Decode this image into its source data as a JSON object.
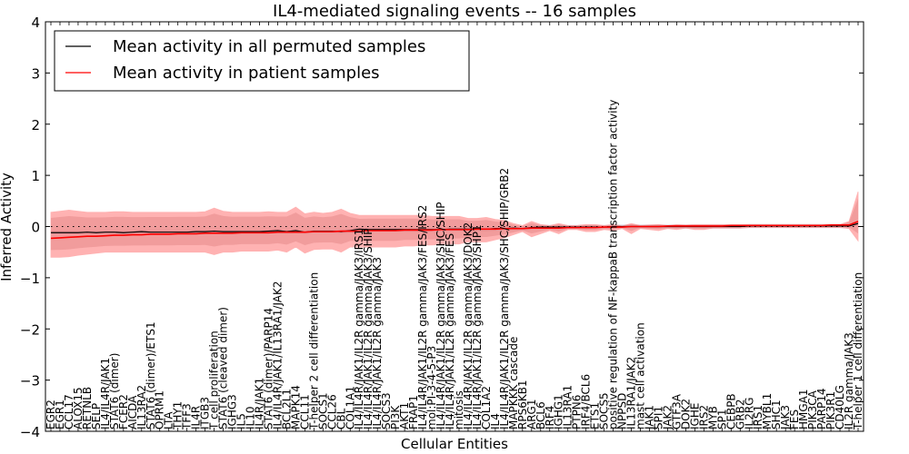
{
  "chart_data": {
    "type": "line",
    "title": "IL4-mediated signaling events -- 16 samples",
    "xlabel": "Cellular Entities",
    "ylabel": "Inferred Activity",
    "ylim": [
      -4,
      4
    ],
    "yticks": [
      -4,
      -3,
      -2,
      -1,
      0,
      1,
      2,
      3,
      4
    ],
    "ytick_labels": [
      "−4",
      "−3",
      "−2",
      "−1",
      "0",
      "1",
      "2",
      "3",
      "4"
    ],
    "grid": false,
    "zero_reference_line": "dotted",
    "legend": {
      "placement": "top-left",
      "entries": [
        {
          "label": "Mean activity in all permuted samples",
          "color": "#000000"
        },
        {
          "label": "Mean activity in patient samples",
          "color": "#ff0000"
        }
      ]
    },
    "colors": {
      "permuted_line": "#000000",
      "patient_line": "#ff0000",
      "patient_band": "#ff8080",
      "patient_band_inner": "#e08080",
      "permuted_band": "#c8c8d8"
    },
    "categories": [
      "EGR2",
      "EGR1",
      "CCL17",
      "ALOX15",
      "RETNLB",
      "SELP",
      "IL4/IL4R/JAK1",
      "STAT6 (dimer)",
      "FCER2",
      "AICDA",
      "IL13RA2",
      "STAT6 (dimer)/ETS1",
      "OPRM1",
      "LTA",
      "THY1",
      "TFF3",
      "IL4R",
      "ITGB3",
      "T cell proliferation",
      "STAT6 (cleaved dimer)",
      "IGHG3",
      "IL5",
      "IL10",
      "IL4R/JAK1",
      "STAT6 (dimer)/PARP14",
      "IL4/IL4R/JAK1/IL13RA1/JAK2",
      "BCL2L1",
      "MAPK14",
      "CCL11",
      "T-helper 2 cell differentiation",
      "SOCS1",
      "CCL26",
      "CBL",
      "COL1A1",
      "IL4/IL4R/JAK1/IL2R gamma/JAK3/IRS1",
      "IL4/IL4R/JAK1/IL2R gamma/JAK3/SHIP",
      "IL4/IL4R/JAK1/IL2R gamma/JAK3",
      "SOCS3",
      "PI3K",
      "AKT1",
      "FRAP1",
      "IL4/IL4R/JAK1/IL2R gamma/JAK3/FES/IRS2",
      "mol:PI-3-4-5-P3",
      "IL4/IL4R/JAK1/IL2R gamma/JAK3/SHC/SHIP",
      "IL4/IL4R/JAK1/IL2R gamma/JAK3/FES",
      "mitosis",
      "IL4/IL4R/JAK1/IL2R gamma/JAK3/DOK2",
      "IL4/IL4R/JAK1/IL2R gamma/JAK3/SHP1",
      "COL1A2",
      "IL4",
      "IL4/IL4R/JAK1/IL2R gamma/JAK3/SHC/SHIP/GRB2",
      "MAPKKK cascade",
      "RPS6KB1",
      "ARG1",
      "BCL6",
      "IRF4",
      "IGHG1",
      "IL13RA1",
      "PTPN6",
      "IRF4/BCL6",
      "ETS1",
      "SOCS5",
      "positive regulation of NF-kappaB transcription factor activity",
      "NPPSD",
      "IL13RA1/JAK2",
      "mast cell activation",
      "JAK1",
      "SPI1",
      "JAK2",
      "GTF3A",
      "DOK2",
      "IGHE",
      "IRS2",
      "MYB",
      "SP1",
      "CEBPB",
      "GRB2",
      "IL2RG",
      "IRS1",
      "MYBL1",
      "SHC1",
      "JAK3",
      "FES",
      "HMGA1",
      "PIK3CA",
      "PARP14",
      "PIK3R1",
      "CD40LG",
      "IL2R gamma/JAK3",
      "T-helper 1 cell differentiation"
    ],
    "series": [
      {
        "name": "Mean activity in all permuted samples",
        "values": [
          -0.12,
          -0.12,
          -0.12,
          -0.12,
          -0.11,
          -0.12,
          -0.11,
          -0.11,
          -0.12,
          -0.11,
          -0.1,
          -0.11,
          -0.11,
          -0.11,
          -0.11,
          -0.11,
          -0.1,
          -0.1,
          -0.09,
          -0.1,
          -0.1,
          -0.1,
          -0.1,
          -0.1,
          -0.09,
          -0.08,
          -0.1,
          -0.08,
          -0.11,
          -0.09,
          -0.09,
          -0.09,
          -0.1,
          -0.08,
          -0.05,
          -0.06,
          -0.06,
          -0.06,
          -0.06,
          -0.06,
          -0.06,
          -0.06,
          -0.06,
          -0.06,
          -0.05,
          -0.05,
          -0.05,
          -0.05,
          -0.05,
          -0.04,
          -0.04,
          -0.03,
          -0.04,
          -0.02,
          -0.01,
          -0.01,
          -0.01,
          -0.01,
          -0.01,
          -0.01,
          -0.01,
          -0.01,
          0.0,
          0.0,
          0.0,
          0.0,
          0.0,
          0.0,
          0.0,
          0.0,
          0.0,
          0.0,
          0.0,
          0.0,
          0.0,
          0.0,
          0.0,
          0.01,
          0.01,
          0.01,
          0.01,
          0.01,
          0.01,
          0.01,
          0.01,
          0.01,
          0.01,
          0.01,
          0.01,
          0.06
        ]
      },
      {
        "name": "Mean activity in patient samples",
        "values": [
          -0.23,
          -0.22,
          -0.21,
          -0.2,
          -0.19,
          -0.19,
          -0.18,
          -0.17,
          -0.17,
          -0.16,
          -0.16,
          -0.15,
          -0.15,
          -0.15,
          -0.14,
          -0.14,
          -0.14,
          -0.13,
          -0.13,
          -0.13,
          -0.13,
          -0.12,
          -0.12,
          -0.12,
          -0.12,
          -0.11,
          -0.11,
          -0.11,
          -0.11,
          -0.1,
          -0.1,
          -0.1,
          -0.09,
          -0.09,
          -0.09,
          -0.08,
          -0.08,
          -0.08,
          -0.08,
          -0.07,
          -0.07,
          -0.07,
          -0.07,
          -0.06,
          -0.06,
          -0.06,
          -0.06,
          -0.05,
          -0.05,
          -0.05,
          -0.04,
          -0.04,
          -0.04,
          -0.03,
          -0.03,
          -0.03,
          -0.03,
          -0.02,
          -0.02,
          -0.02,
          -0.02,
          -0.01,
          -0.01,
          -0.01,
          0.0,
          0.0,
          0.0,
          0.0,
          0.01,
          0.01,
          0.01,
          0.01,
          0.01,
          0.01,
          0.01,
          0.02,
          0.02,
          0.02,
          0.02,
          0.02,
          0.02,
          0.02,
          0.02,
          0.02,
          0.02,
          0.02,
          0.03,
          0.03,
          0.03,
          0.1
        ]
      }
    ],
    "patient_band_upper": [
      0.28,
      0.3,
      0.32,
      0.3,
      0.28,
      0.28,
      0.28,
      0.29,
      0.29,
      0.28,
      0.28,
      0.28,
      0.28,
      0.28,
      0.28,
      0.28,
      0.28,
      0.29,
      0.36,
      0.3,
      0.28,
      0.28,
      0.28,
      0.28,
      0.29,
      0.28,
      0.28,
      0.38,
      0.25,
      0.28,
      0.26,
      0.28,
      0.34,
      0.26,
      0.22,
      0.22,
      0.22,
      0.22,
      0.22,
      0.22,
      0.22,
      0.22,
      0.2,
      0.2,
      0.2,
      0.2,
      0.16,
      0.16,
      0.18,
      0.14,
      0.12,
      0.06,
      0.02,
      0.1,
      0.04,
      0.02,
      0.06,
      0.02,
      0.02,
      0.04,
      0.04,
      0.02,
      0.04,
      0.01,
      0.06,
      0.02,
      0.03,
      0.04,
      0.02,
      0.04,
      0.03,
      0.04,
      0.04,
      0.04,
      0.04,
      0.04,
      0.04,
      0.04,
      0.04,
      0.04,
      0.04,
      0.04,
      0.04,
      0.04,
      0.04,
      0.04,
      0.04,
      0.04,
      0.1,
      0.68
    ],
    "patient_band_lower": [
      -0.6,
      -0.6,
      -0.59,
      -0.56,
      -0.54,
      -0.52,
      -0.5,
      -0.5,
      -0.5,
      -0.5,
      -0.5,
      -0.5,
      -0.5,
      -0.5,
      -0.5,
      -0.5,
      -0.5,
      -0.5,
      -0.55,
      -0.5,
      -0.5,
      -0.48,
      -0.48,
      -0.48,
      -0.48,
      -0.46,
      -0.5,
      -0.4,
      -0.52,
      -0.45,
      -0.44,
      -0.44,
      -0.5,
      -0.4,
      -0.4,
      -0.4,
      -0.4,
      -0.4,
      -0.4,
      -0.38,
      -0.38,
      -0.36,
      -0.36,
      -0.35,
      -0.34,
      -0.34,
      -0.3,
      -0.3,
      -0.3,
      -0.26,
      -0.22,
      -0.16,
      -0.1,
      -0.2,
      -0.14,
      -0.08,
      -0.14,
      -0.06,
      -0.06,
      -0.1,
      -0.1,
      -0.06,
      -0.08,
      -0.04,
      -0.14,
      -0.04,
      -0.06,
      -0.08,
      -0.04,
      -0.06,
      -0.03,
      -0.06,
      -0.06,
      -0.03,
      -0.03,
      -0.03,
      -0.03,
      -0.02,
      -0.02,
      -0.02,
      -0.02,
      -0.02,
      -0.02,
      -0.02,
      -0.02,
      -0.02,
      -0.02,
      -0.02,
      -0.04,
      -0.28
    ]
  }
}
